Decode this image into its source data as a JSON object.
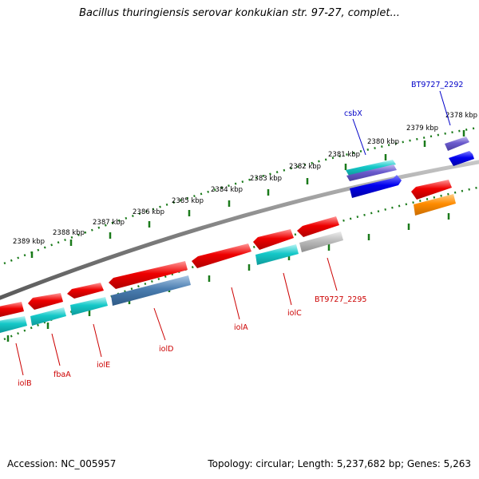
{
  "title": "Bacillus thuringiensis serovar konkukian str. 97-27, complet...",
  "footer": {
    "accession": "Accession: NC_005957",
    "summary": "Topology: circular; Length: 5,237,682 bp; Genes: 5,263"
  },
  "colors": {
    "backbone": "#8a8a8a",
    "tick": "#1a7a1a",
    "red": "#ee0000",
    "cyan": "#15c8c8",
    "steelblue": "#4a7db0",
    "gray": "#b8b8b8",
    "blue": "#0000ee",
    "slateblue": "#6a5acd",
    "orange": "#ff8c00",
    "label_top": "#0000c8",
    "label_bottom": "#cc0000"
  },
  "scale_labels": [
    "2378 kbp",
    "2379 kbp",
    "2380 kbp",
    "2381 kbp",
    "2382 kbp",
    "2383 kbp",
    "2384 kbp",
    "2385 kbp",
    "2386 kbp",
    "2387 kbp",
    "2388 kbp",
    "2389 kbp"
  ],
  "gene_labels": {
    "top": [
      "BT9727_2292",
      "csbX"
    ],
    "bottom": [
      "iolB",
      "fbaA",
      "iolE",
      "iolD",
      "iolA",
      "iolC",
      "BT9727_2295"
    ]
  }
}
